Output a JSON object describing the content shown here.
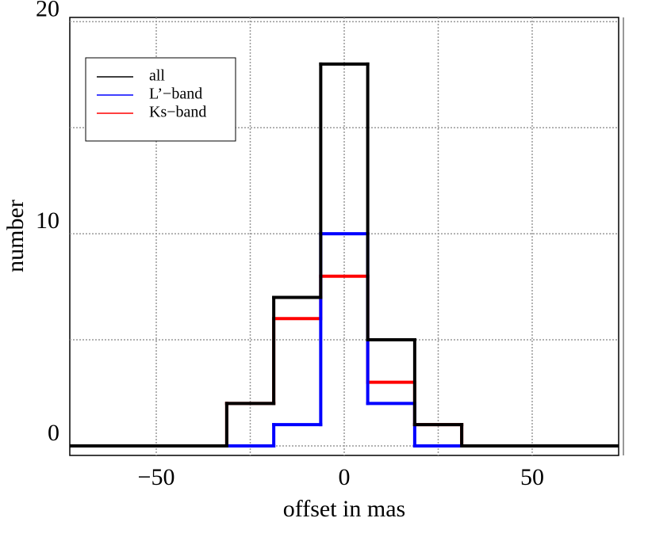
{
  "chart_data": {
    "type": "histogram",
    "xlabel": "offset in mas",
    "ylabel": "number",
    "bins": [
      -31.25,
      -18.75,
      -6.25,
      6.25,
      18.75,
      31.25
    ],
    "series": [
      {
        "name": "all",
        "color": "#000000",
        "values": [
          2,
          7,
          18,
          5,
          1
        ]
      },
      {
        "name": "L’−band",
        "color": "#0000ff",
        "values": [
          0,
          1,
          10,
          2,
          0
        ]
      },
      {
        "name": "Ks−band",
        "color": "#ff0000",
        "values": [
          2,
          6,
          8,
          3,
          1
        ]
      }
    ],
    "xlim": [
      -73,
      73
    ],
    "xticks": [
      {
        "value": -50,
        "label": "−50"
      },
      0,
      50
    ],
    "xminor": [
      -25,
      25
    ],
    "ylim": [
      -0.45,
      20.2
    ],
    "yticks": [
      0,
      10,
      20
    ],
    "yminor": [
      5,
      15
    ],
    "grid": true,
    "legend": "upper left"
  }
}
